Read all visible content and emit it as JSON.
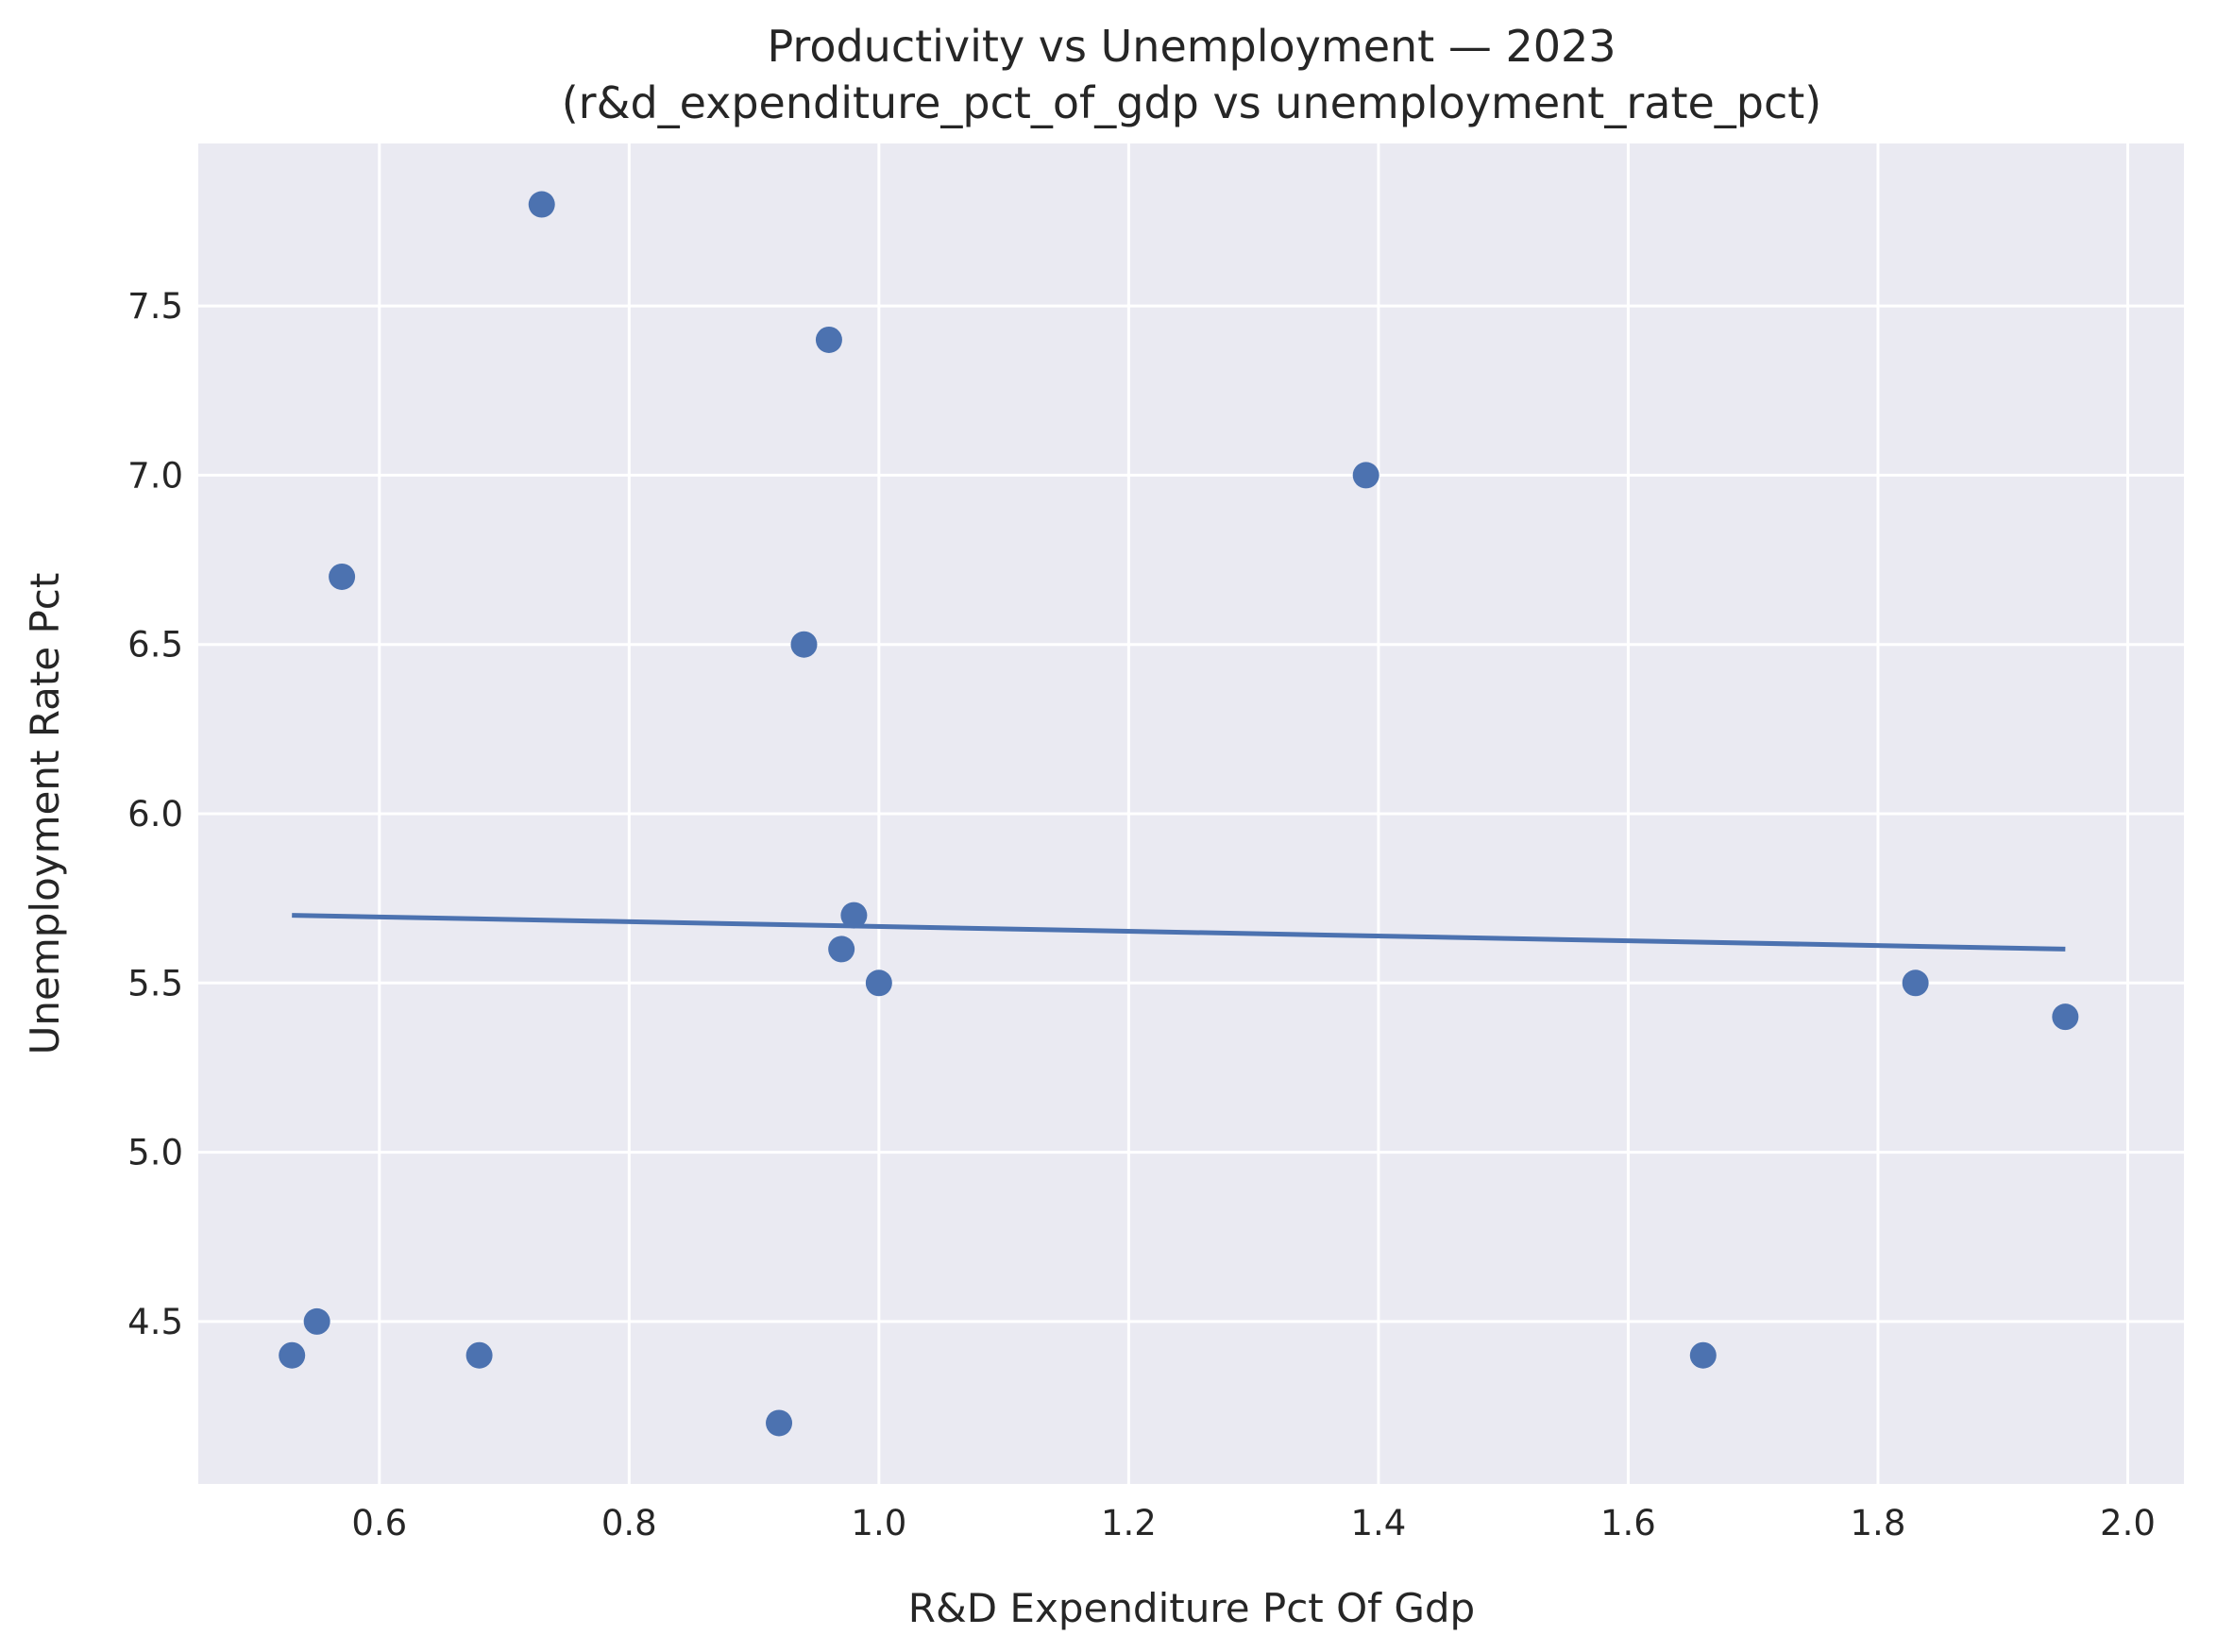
{
  "chart_data": {
    "type": "scatter",
    "title": "Productivity vs Unemployment — 2023",
    "subtitle": "(r&d_expenditure_pct_of_gdp vs unemployment_rate_pct)",
    "xlabel": "R&D Expenditure Pct Of Gdp",
    "ylabel": "Unemployment Rate Pct",
    "xlim": [
      0.455,
      2.045
    ],
    "ylim": [
      4.02,
      7.98
    ],
    "xticks": [
      0.6,
      0.8,
      1.0,
      1.2,
      1.4,
      1.6,
      1.8,
      2.0
    ],
    "xtick_labels": [
      "0.6",
      "0.8",
      "1.0",
      "1.2",
      "1.4",
      "1.6",
      "1.8",
      "2.0"
    ],
    "yticks": [
      4.5,
      5.0,
      5.5,
      6.0,
      6.5,
      7.0,
      7.5
    ],
    "ytick_labels": [
      "4.5",
      "5.0",
      "5.5",
      "6.0",
      "6.5",
      "7.0",
      "7.5"
    ],
    "grid": true,
    "points": [
      {
        "x": 0.73,
        "y": 7.8
      },
      {
        "x": 0.96,
        "y": 7.4
      },
      {
        "x": 1.39,
        "y": 7.0
      },
      {
        "x": 0.57,
        "y": 6.7
      },
      {
        "x": 0.94,
        "y": 6.5
      },
      {
        "x": 0.98,
        "y": 5.7
      },
      {
        "x": 0.97,
        "y": 5.6
      },
      {
        "x": 1.0,
        "y": 5.5
      },
      {
        "x": 1.83,
        "y": 5.5
      },
      {
        "x": 1.95,
        "y": 5.4
      },
      {
        "x": 0.55,
        "y": 4.5
      },
      {
        "x": 0.53,
        "y": 4.4
      },
      {
        "x": 0.68,
        "y": 4.4
      },
      {
        "x": 1.66,
        "y": 4.4
      },
      {
        "x": 0.92,
        "y": 4.2
      }
    ],
    "trendline": {
      "x": [
        0.53,
        1.95
      ],
      "y": [
        5.7,
        5.6
      ]
    },
    "colors": {
      "background": "#eaeaf2",
      "grid": "#ffffff",
      "point": "#4c72b0",
      "text": "#262626"
    }
  }
}
